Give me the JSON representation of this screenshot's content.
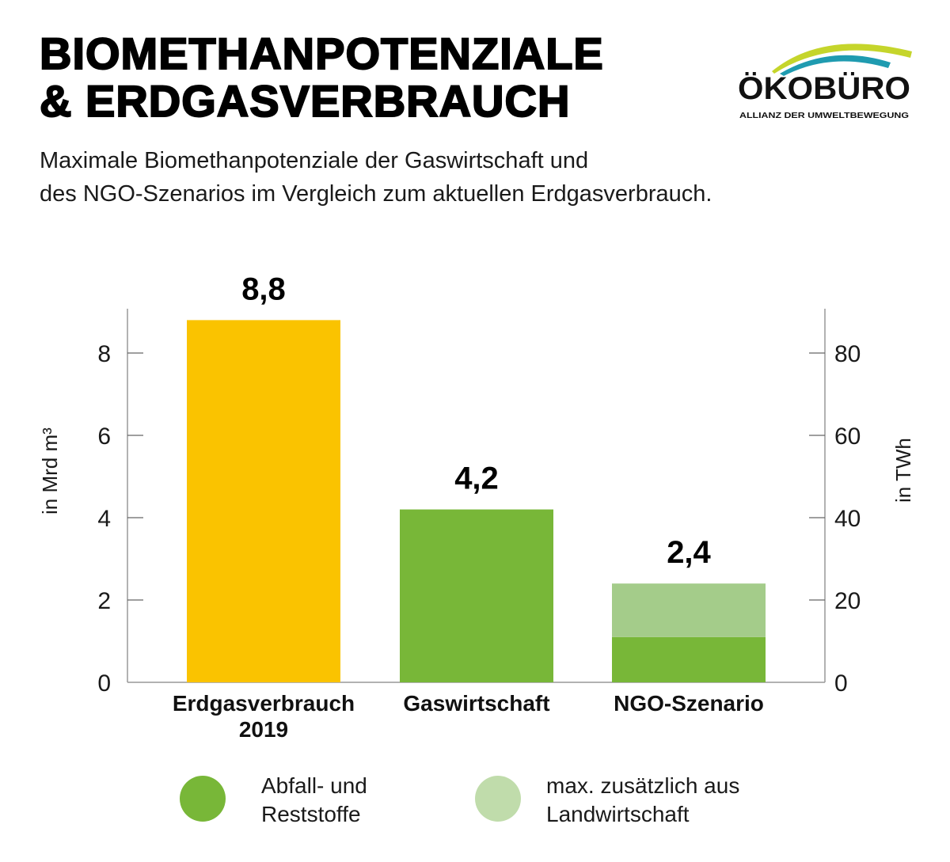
{
  "header": {
    "title_line1": "BIOMETHANPOTENZIALE",
    "title_line2": "& ERDGASVERBRAUCH",
    "subtitle_line1": "Maximale Biomethanpotenziale der Gaswirtschaft und",
    "subtitle_line2": "des NGO-Szenarios im Vergleich zum aktuellen Erdgasverbrauch."
  },
  "logo": {
    "name": "ÖKOBÜRO",
    "tagline": "ALLIANZ DER UMWELTBEWEGUNG",
    "colors": [
      "#c5d52b",
      "#1f9bb0"
    ]
  },
  "chart_data": {
    "type": "bar",
    "stacked": true,
    "categories": [
      [
        "Erdgasverbrauch",
        "2019"
      ],
      [
        "Gaswirtschaft"
      ],
      [
        "NGO-Szenario"
      ]
    ],
    "totals_labels": [
      "8,8",
      "4,2",
      "2,4"
    ],
    "series": [
      {
        "name": "",
        "values": [
          8.8,
          0,
          0
        ],
        "color": "#fac300"
      },
      {
        "name": "Abfall- und Reststoffe",
        "values": [
          0,
          4.2,
          1.1
        ],
        "color": "#78b738"
      },
      {
        "name": "max. zusätzlich aus Landwirtschaft",
        "values": [
          0,
          0,
          1.3
        ],
        "color": "#a4cc8a"
      }
    ],
    "ylabel": "in Mrd m³",
    "y2label": "in TWh",
    "ylim": [
      0,
      9
    ],
    "yticks": [
      "0",
      "2",
      "4",
      "6",
      "8"
    ],
    "y2ticks": [
      "0",
      "20",
      "40",
      "60",
      "80"
    ],
    "grid": false,
    "legend_position": "bottom"
  },
  "legend": [
    {
      "line1": "Abfall- und",
      "line2": "Reststoffe",
      "color": "#78b738"
    },
    {
      "line1": "max. zusätzlich aus",
      "line2": "Landwirtschaft",
      "color": "#c0dcab"
    }
  ]
}
